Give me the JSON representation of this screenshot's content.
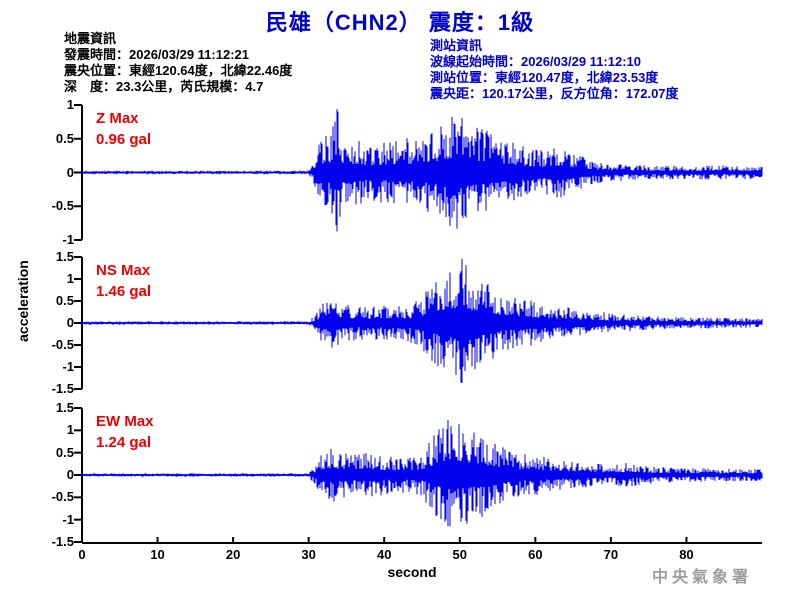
{
  "title": "民雄（CHN2） 震度：1級",
  "quake_info": {
    "heading": "地震資訊",
    "lines": [
      "發震時間：2026/03/29 11:12:21",
      "震央位置：東經120.64度，北緯22.46度",
      "深　度：23.3公里，芮氏規模：4.7"
    ]
  },
  "station_info": {
    "heading": "測站資訊",
    "lines": [
      "波線起始時間：2026/03/29 11:12:10",
      "測站位置：東經120.47度，北緯23.53度",
      "震央距：120.17公里，反方位角：172.07度"
    ]
  },
  "watermark": "中央氣象署",
  "colors": {
    "accent_blue": "#0000cd",
    "trace_blue": "#0101ee",
    "label_red": "#ee0000",
    "axis_black": "#000000",
    "watermark_gray": "#9e9e9e"
  },
  "chart_data": {
    "type": "line",
    "title": "民雄（CHN2） 震度：1級",
    "xlabel": "second",
    "ylabel": "acceleration",
    "x_range": [
      0,
      90
    ],
    "x_ticks": [
      0,
      10,
      20,
      30,
      40,
      50,
      60,
      70,
      80
    ],
    "y_unit": "gal",
    "panels": [
      {
        "id": "Z",
        "max_label": "Z Max",
        "max_value_label": "0.96 gal",
        "max_gal": 0.96,
        "peak_s": 33.8,
        "p_arrival_s": 31,
        "ylim": [
          -1,
          1
        ],
        "y_ticks": [
          1,
          0.5,
          0,
          -0.5,
          -1
        ],
        "envelope_gal_vs_s": [
          [
            0,
            0.028
          ],
          [
            30,
            0.028
          ],
          [
            30.8,
            0.2
          ],
          [
            31.5,
            0.5
          ],
          [
            33,
            0.6
          ],
          [
            33.8,
            0.96
          ],
          [
            34.5,
            0.55
          ],
          [
            36,
            0.5
          ],
          [
            38,
            0.42
          ],
          [
            40,
            0.46
          ],
          [
            42,
            0.5
          ],
          [
            44,
            0.52
          ],
          [
            46,
            0.6
          ],
          [
            48,
            0.75
          ],
          [
            49.8,
            0.95
          ],
          [
            51,
            0.75
          ],
          [
            53,
            0.65
          ],
          [
            55,
            0.55
          ],
          [
            57,
            0.45
          ],
          [
            59,
            0.38
          ],
          [
            61,
            0.33
          ],
          [
            63,
            0.4
          ],
          [
            65,
            0.3
          ],
          [
            67,
            0.2
          ],
          [
            69,
            0.15
          ],
          [
            72,
            0.12
          ],
          [
            76,
            0.1
          ],
          [
            80,
            0.1
          ],
          [
            84,
            0.11
          ],
          [
            90,
            0.09
          ]
        ]
      },
      {
        "id": "NS",
        "max_label": "NS Max",
        "max_value_label": "1.46 gal",
        "max_gal": 1.46,
        "peak_s": 50.3,
        "p_arrival_s": 31,
        "ylim": [
          -1.5,
          1.5
        ],
        "y_ticks": [
          1.5,
          1,
          0.5,
          0,
          -0.5,
          -1,
          -1.5
        ],
        "envelope_gal_vs_s": [
          [
            0,
            0.04
          ],
          [
            30,
            0.04
          ],
          [
            30.8,
            0.18
          ],
          [
            31.8,
            0.45
          ],
          [
            33,
            0.62
          ],
          [
            33.8,
            0.6
          ],
          [
            35,
            0.42
          ],
          [
            37,
            0.38
          ],
          [
            39,
            0.42
          ],
          [
            41,
            0.38
          ],
          [
            43,
            0.4
          ],
          [
            44.5,
            0.55
          ],
          [
            46,
            0.85
          ],
          [
            47.5,
            1.05
          ],
          [
            49,
            1.25
          ],
          [
            50.3,
            1.46
          ],
          [
            51.5,
            1.15
          ],
          [
            53,
            1.0
          ],
          [
            54.5,
            0.85
          ],
          [
            56,
            0.65
          ],
          [
            58,
            0.55
          ],
          [
            60,
            0.5
          ],
          [
            62,
            0.42
          ],
          [
            64,
            0.38
          ],
          [
            66,
            0.32
          ],
          [
            68,
            0.27
          ],
          [
            70,
            0.22
          ],
          [
            73,
            0.18
          ],
          [
            76,
            0.15
          ],
          [
            80,
            0.13
          ],
          [
            85,
            0.12
          ],
          [
            90,
            0.11
          ]
        ]
      },
      {
        "id": "EW",
        "max_label": "EW Max",
        "max_value_label": "1.24 gal",
        "max_gal": 1.24,
        "peak_s": 48.5,
        "p_arrival_s": 31,
        "ylim": [
          -1.5,
          1.5
        ],
        "y_ticks": [
          1.5,
          1,
          0.5,
          0,
          -0.5,
          -1,
          -1.5
        ],
        "envelope_gal_vs_s": [
          [
            0,
            0.04
          ],
          [
            30,
            0.04
          ],
          [
            30.8,
            0.22
          ],
          [
            31.8,
            0.5
          ],
          [
            33,
            0.62
          ],
          [
            34,
            0.55
          ],
          [
            35.5,
            0.45
          ],
          [
            37,
            0.5
          ],
          [
            39,
            0.48
          ],
          [
            41,
            0.42
          ],
          [
            43,
            0.42
          ],
          [
            45,
            0.5
          ],
          [
            46.2,
            0.8
          ],
          [
            47.3,
            1.05
          ],
          [
            48.5,
            1.24
          ],
          [
            50,
            1.2
          ],
          [
            51.5,
            1.05
          ],
          [
            53,
            0.95
          ],
          [
            54.5,
            0.75
          ],
          [
            56,
            0.6
          ],
          [
            58,
            0.5
          ],
          [
            60,
            0.45
          ],
          [
            62,
            0.38
          ],
          [
            64,
            0.33
          ],
          [
            66,
            0.3
          ],
          [
            68,
            0.26
          ],
          [
            70,
            0.22
          ],
          [
            72.5,
            0.28
          ],
          [
            75,
            0.2
          ],
          [
            78,
            0.17
          ],
          [
            82,
            0.15
          ],
          [
            86,
            0.14
          ],
          [
            90,
            0.13
          ]
        ]
      }
    ]
  }
}
